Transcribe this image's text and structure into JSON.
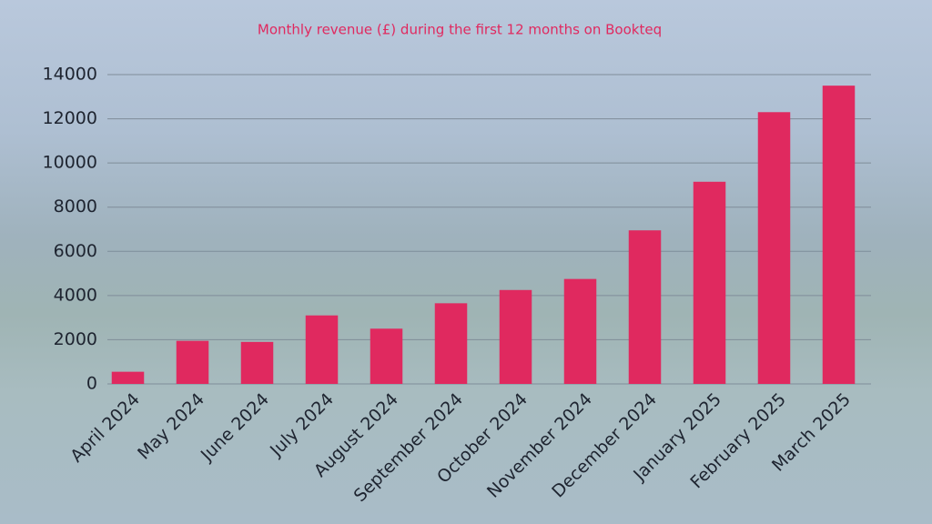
{
  "chart_data": {
    "type": "bar",
    "title": "Monthly revenue (£) during the first 12 months on Bookteq",
    "categories": [
      "April 2024",
      "May 2024",
      "June 2024",
      "July 2024",
      "August 2024",
      "September 2024",
      "October 2024",
      "November 2024",
      "December 2024",
      "January 2025",
      "February 2025",
      "March 2025"
    ],
    "values": [
      550,
      1950,
      1900,
      3100,
      2500,
      3650,
      4250,
      4750,
      6950,
      9150,
      12300,
      13500
    ],
    "color": "#e0295f",
    "ylim": [
      0,
      14000
    ],
    "yticks": [
      0,
      2000,
      4000,
      6000,
      8000,
      10000,
      12000,
      14000
    ],
    "grid": true
  }
}
